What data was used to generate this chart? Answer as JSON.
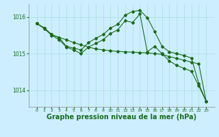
{
  "background_color": "#cceeff",
  "plot_bg_color": "#cceeff",
  "grid_color": "#aadddd",
  "line_color": "#1a6b1a",
  "xlabel": "Graphe pression niveau de la mer (hPa)",
  "xlabel_fontsize": 7,
  "ylim": [
    1013.55,
    1016.35
  ],
  "yticks": [
    1014,
    1015,
    1016
  ],
  "xticks": [
    0,
    1,
    2,
    3,
    4,
    5,
    6,
    7,
    8,
    9,
    10,
    11,
    12,
    13,
    14,
    15,
    16,
    17,
    18,
    19,
    20,
    21,
    22,
    23
  ],
  "series": [
    [
      1015.82,
      1015.7,
      1015.52,
      1015.44,
      1015.38,
      1015.3,
      1015.24,
      1015.18,
      1015.13,
      1015.1,
      1015.08,
      1015.06,
      1015.05,
      1015.04,
      1015.03,
      1015.02,
      1015.0,
      1014.98,
      1014.92,
      1014.87,
      1014.82,
      1014.77,
      1014.72,
      1013.7
    ],
    [
      1015.82,
      1015.68,
      1015.5,
      1015.38,
      1015.18,
      1015.1,
      1015.0,
      1015.18,
      1015.28,
      1015.38,
      1015.55,
      1015.65,
      1015.9,
      1015.85,
      1016.08,
      1015.05,
      1015.2,
      1015.0,
      1014.8,
      1014.68,
      1014.6,
      1014.52,
      1014.12,
      1013.7
    ],
    [
      1015.82,
      1015.7,
      1015.52,
      1015.44,
      1015.2,
      1015.15,
      1015.1,
      1015.3,
      1015.42,
      1015.52,
      1015.7,
      1015.8,
      1016.05,
      1016.15,
      1016.18,
      1015.98,
      1015.6,
      1015.2,
      1015.05,
      1015.0,
      1014.95,
      1014.88,
      1014.18,
      1013.7
    ]
  ],
  "marker": "D",
  "marker_size": 2.0,
  "line_width": 0.8
}
